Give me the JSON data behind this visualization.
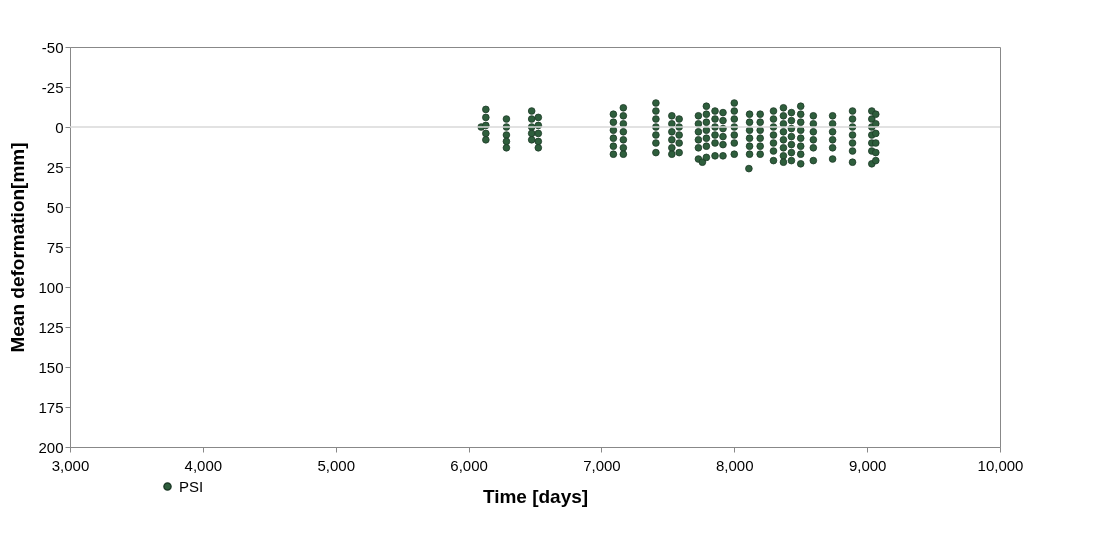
{
  "chart_data": {
    "type": "scatter",
    "xlabel": "Time [days]",
    "ylabel": "Mean deformation[mm]",
    "xlim": [
      3000,
      10000
    ],
    "xticks": [
      {
        "value": 3000,
        "label": "3,000"
      },
      {
        "value": 4000,
        "label": "4,000"
      },
      {
        "value": 5000,
        "label": "5,000"
      },
      {
        "value": 6000,
        "label": "6,000"
      },
      {
        "value": 7000,
        "label": "7,000"
      },
      {
        "value": 8000,
        "label": "8,000"
      },
      {
        "value": 9000,
        "label": "9,000"
      },
      {
        "value": 10000,
        "label": "10,000"
      }
    ],
    "ylim": [
      200,
      -50
    ],
    "yticks": [
      -50,
      -25,
      0,
      25,
      50,
      75,
      100,
      125,
      150,
      175,
      200
    ],
    "grid": false,
    "legend": "bottom left",
    "marker": "circle",
    "ref_lines": [
      {
        "axis": "y",
        "value": 0,
        "color": "#d9d9d9"
      }
    ],
    "series": [
      {
        "name": "PSI",
        "color": "#2e5e3c",
        "x": [
          6095,
          6130,
          6130,
          6130,
          6130,
          6130,
          6285,
          6285,
          6285,
          6285,
          6285,
          6475,
          6475,
          6475,
          6475,
          6475,
          6525,
          6525,
          6525,
          6525,
          6525,
          7090,
          7090,
          7090,
          7090,
          7090,
          7090,
          7165,
          7165,
          7165,
          7165,
          7165,
          7165,
          7165,
          7410,
          7410,
          7410,
          7410,
          7410,
          7410,
          7410,
          7530,
          7530,
          7530,
          7530,
          7530,
          7530,
          7585,
          7585,
          7585,
          7585,
          7585,
          7730,
          7730,
          7730,
          7730,
          7730,
          7730,
          7760,
          7790,
          7790,
          7790,
          7790,
          7790,
          7790,
          7790,
          7855,
          7855,
          7855,
          7855,
          7855,
          7855,
          7915,
          7915,
          7915,
          7915,
          7915,
          7915,
          8000,
          8000,
          8000,
          8000,
          8000,
          8000,
          8000,
          8115,
          8115,
          8115,
          8115,
          8115,
          8115,
          8110,
          8195,
          8195,
          8195,
          8195,
          8195,
          8195,
          8295,
          8295,
          8295,
          8295,
          8295,
          8295,
          8295,
          8370,
          8370,
          8370,
          8370,
          8370,
          8370,
          8370,
          8370,
          8430,
          8430,
          8430,
          8430,
          8430,
          8430,
          8430,
          8500,
          8500,
          8500,
          8500,
          8500,
          8500,
          8500,
          8500,
          8595,
          8595,
          8595,
          8595,
          8595,
          8595,
          8740,
          8740,
          8740,
          8740,
          8740,
          8740,
          8890,
          8890,
          8890,
          8890,
          8890,
          8890,
          8890,
          9035,
          9035,
          9035,
          9035,
          9035,
          9035,
          9035,
          9065,
          9065,
          9065,
          9065,
          9065,
          9065
        ],
        "values": [
          0,
          -11,
          -6,
          -1,
          4,
          8,
          -5,
          0,
          5,
          9,
          13,
          -10,
          -5,
          0,
          4,
          8,
          -6,
          -1,
          4,
          9,
          13,
          -8,
          -3,
          2,
          7,
          12,
          17,
          -12,
          -7,
          -2,
          3,
          8,
          13,
          17,
          -15,
          -10,
          -5,
          0,
          5,
          10,
          16,
          -7,
          -2,
          3,
          8,
          13,
          17,
          -5,
          0,
          5,
          10,
          16,
          -7,
          -2,
          3,
          8,
          13,
          20,
          22,
          -13,
          -8,
          -3,
          2,
          7,
          12,
          19,
          -10,
          -5,
          0,
          5,
          10,
          18,
          -9,
          -4,
          1,
          6,
          11,
          18,
          -15,
          -10,
          -5,
          0,
          5,
          10,
          17,
          -8,
          -3,
          2,
          7,
          12,
          17,
          26,
          -8,
          -3,
          2,
          7,
          12,
          17,
          -10,
          -5,
          0,
          5,
          10,
          15,
          21,
          -12,
          -7,
          -2,
          3,
          8,
          13,
          18,
          22,
          -9,
          -4,
          1,
          6,
          11,
          16,
          21,
          -13,
          -8,
          -3,
          2,
          7,
          12,
          17,
          23,
          -7,
          -2,
          3,
          8,
          13,
          21,
          -7,
          -2,
          3,
          8,
          13,
          20,
          -10,
          -5,
          0,
          5,
          10,
          15,
          22,
          -10,
          -5,
          0,
          5,
          10,
          15,
          23,
          -8,
          -2,
          4,
          10,
          16,
          21
        ]
      }
    ]
  }
}
